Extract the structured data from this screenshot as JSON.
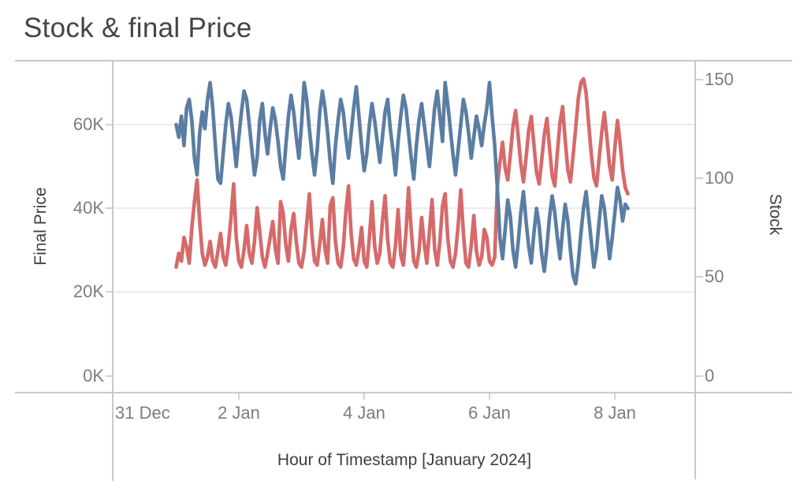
{
  "title": "Stock & final Price",
  "chart_data": {
    "type": "line",
    "title": "Stock & final Price",
    "xlabel": "Hour of Timestamp [January 2024]",
    "x_axis": {
      "tick_labels": [
        "31 Dec",
        "2 Jan",
        "4 Jan",
        "6 Jan",
        "8 Jan"
      ],
      "start_timestamp": "2024-01-01 00:00",
      "interval_hours": 1,
      "visible_range": [
        "31 Dec",
        "8 Jan"
      ]
    },
    "left_axis": {
      "title": "Final Price",
      "tick_labels": [
        "60K",
        "40K",
        "20K",
        "0K"
      ],
      "tick_values_k": [
        60,
        40,
        20,
        0
      ],
      "approx_range_k": [
        -4,
        76
      ],
      "gridlines_at_k": [
        20,
        40,
        60
      ]
    },
    "right_axis": {
      "title": "Stock",
      "tick_labels": [
        "150",
        "100",
        "50",
        "0"
      ],
      "tick_values": [
        150,
        100,
        50,
        0
      ],
      "approx_range": [
        -9,
        160
      ]
    },
    "series": [
      {
        "name": "Stock",
        "axis": "right",
        "color": "#d66a6a",
        "values": [
          55,
          62,
          58,
          70,
          65,
          57,
          75,
          88,
          99,
          78,
          62,
          56,
          60,
          68,
          58,
          55,
          63,
          72,
          60,
          56,
          66,
          80,
          97,
          70,
          58,
          55,
          64,
          76,
          62,
          57,
          68,
          85,
          73,
          60,
          55,
          62,
          70,
          78,
          64,
          57,
          88,
          82,
          66,
          58,
          74,
          82,
          68,
          57,
          55,
          63,
          77,
          92,
          71,
          58,
          56,
          67,
          79,
          64,
          57,
          86,
          90,
          68,
          57,
          55,
          65,
          83,
          96,
          72,
          59,
          56,
          64,
          75,
          58,
          55,
          70,
          88,
          66,
          57,
          62,
          78,
          91,
          69,
          57,
          55,
          66,
          84,
          61,
          56,
          72,
          95,
          74,
          58,
          55,
          63,
          80,
          67,
          57,
          73,
          89,
          64,
          56,
          68,
          86,
          92,
          70,
          58,
          55,
          62,
          76,
          94,
          72,
          57,
          55,
          66,
          81,
          63,
          56,
          60,
          74,
          70,
          58,
          56,
          60,
          96,
          108,
          118,
          105,
          99,
          112,
          126,
          134,
          121,
          107,
          98,
          110,
          124,
          131,
          117,
          103,
          97,
          109,
          122,
          130,
          115,
          101,
          96,
          113,
          128,
          136,
          119,
          104,
          98,
          111,
          125,
          140,
          148,
          150,
          143,
          127,
          112,
          100,
          96,
          110,
          123,
          133,
          120,
          106,
          99,
          115,
          129,
          118,
          104,
          95,
          92
        ]
      },
      {
        "name": "Final Price",
        "axis": "left",
        "unit": "K",
        "color": "#5b7da3",
        "values": [
          60,
          57,
          62,
          55,
          64,
          66,
          61,
          52,
          48,
          58,
          63,
          59,
          66,
          70,
          64,
          55,
          47,
          46,
          53,
          60,
          65,
          62,
          56,
          50,
          57,
          63,
          68,
          66,
          60,
          54,
          48,
          52,
          61,
          65,
          58,
          53,
          59,
          64,
          61,
          56,
          50,
          47,
          55,
          62,
          67,
          63,
          57,
          52,
          60,
          70,
          66,
          59,
          53,
          48,
          54,
          63,
          68,
          64,
          58,
          51,
          46,
          55,
          61,
          66,
          63,
          57,
          52,
          58,
          64,
          69,
          62,
          55,
          49,
          53,
          60,
          65,
          61,
          56,
          51,
          57,
          63,
          66,
          59,
          54,
          48,
          56,
          62,
          67,
          64,
          58,
          52,
          47,
          55,
          61,
          65,
          60,
          55,
          50,
          57,
          64,
          68,
          62,
          56,
          70,
          65,
          59,
          53,
          48,
          54,
          60,
          66,
          63,
          58,
          52,
          57,
          62,
          59,
          55,
          60,
          64,
          70,
          62,
          55,
          45,
          33,
          28,
          35,
          42,
          38,
          30,
          26,
          32,
          39,
          44,
          37,
          31,
          27,
          34,
          40,
          36,
          29,
          25,
          31,
          38,
          43,
          39,
          33,
          28,
          35,
          41,
          37,
          30,
          24,
          22,
          27,
          34,
          40,
          44,
          38,
          32,
          26,
          30,
          37,
          43,
          40,
          34,
          28,
          33,
          39,
          45,
          42,
          37,
          41,
          40
        ]
      }
    ],
    "legend": "none"
  }
}
